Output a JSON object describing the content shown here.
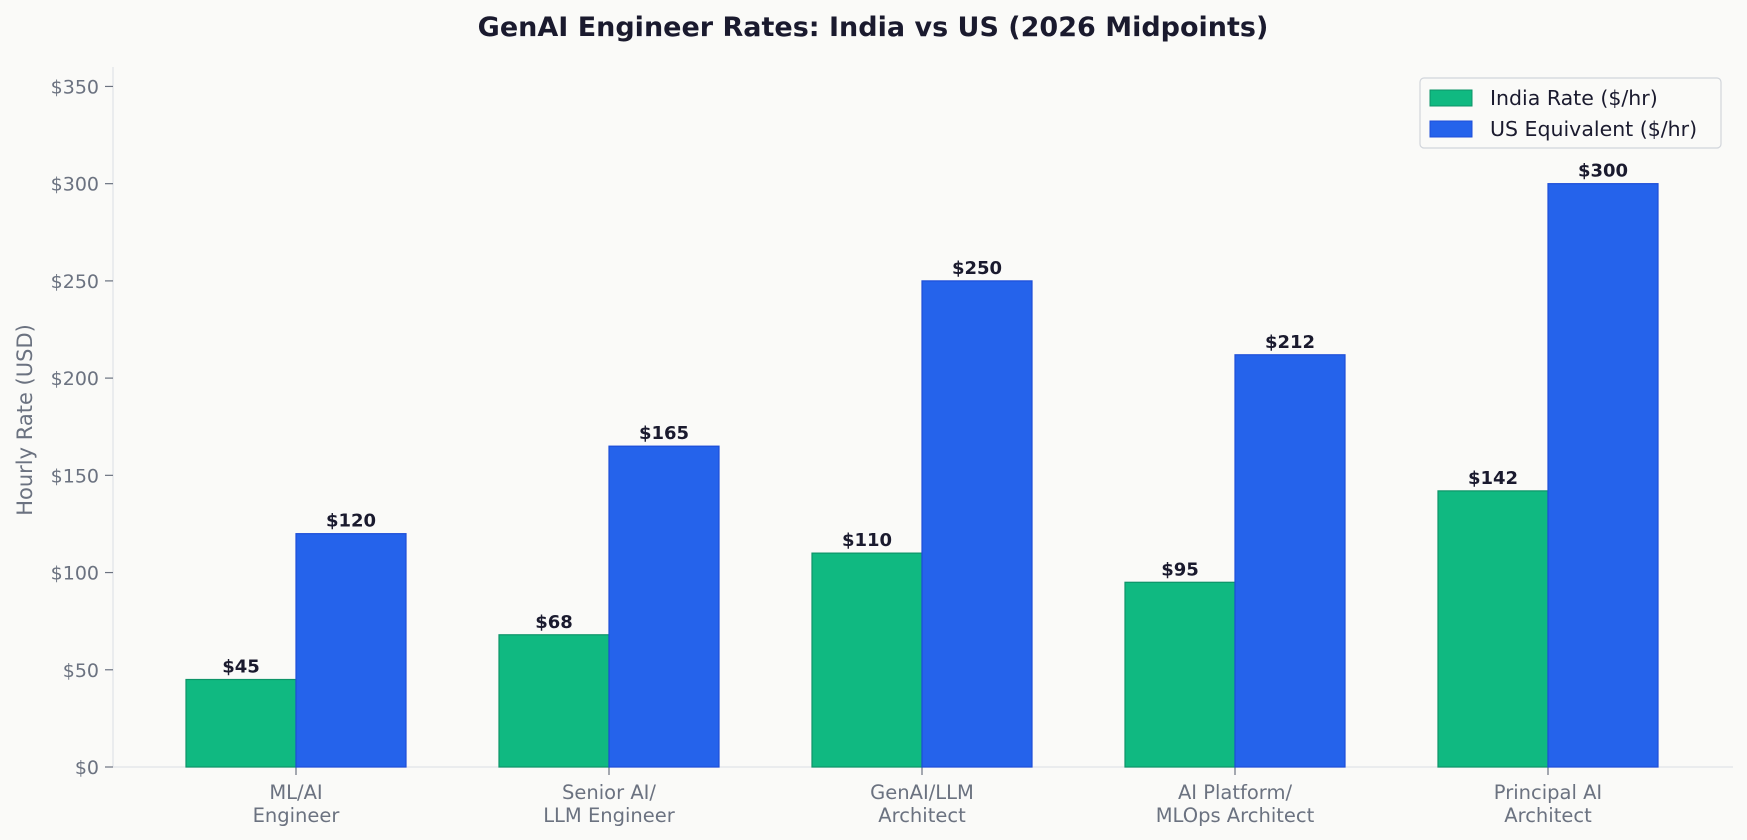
{
  "chart_data": {
    "type": "bar",
    "title": "GenAI Engineer Rates: India vs US (2026 Midpoints)",
    "xlabel": "",
    "ylabel": "Hourly Rate (USD)",
    "ylim": [
      0,
      360
    ],
    "yticks": [
      0,
      50,
      100,
      150,
      200,
      250,
      300,
      350
    ],
    "ytick_prefix": "$",
    "grid": false,
    "legend_position": "top-right",
    "categories": [
      [
        "ML/AI",
        "Engineer"
      ],
      [
        "Senior AI/",
        "LLM Engineer"
      ],
      [
        "GenAI/LLM",
        "Architect"
      ],
      [
        "AI Platform/",
        "MLOps Architect"
      ],
      [
        "Principal AI",
        "Architect"
      ]
    ],
    "series": [
      {
        "name": "India Rate ($/hr)",
        "color": "#10b981",
        "edge": "#0d9468",
        "values": [
          45,
          68,
          110,
          95,
          142
        ]
      },
      {
        "name": "US Equivalent ($/hr)",
        "color": "#2563eb",
        "edge": "#1d4ed8",
        "values": [
          120,
          165,
          250,
          212,
          300
        ]
      }
    ]
  }
}
